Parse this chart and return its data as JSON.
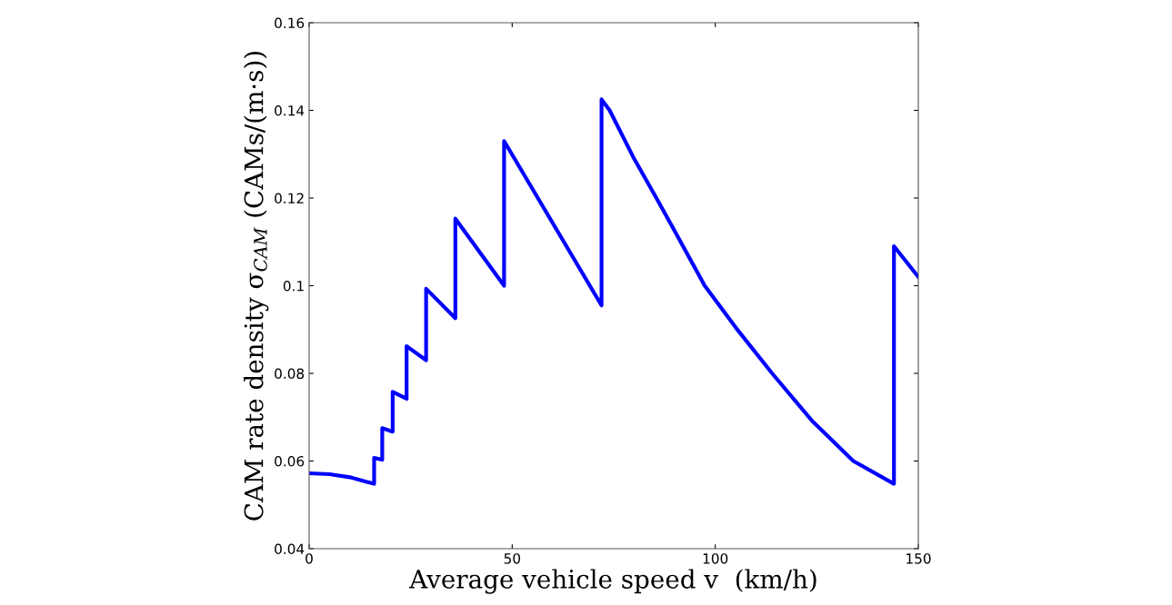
{
  "chart_data": {
    "type": "line",
    "xlabel": "Average vehicle speed v  (km/h)",
    "ylabel": "CAM rate density σ$_{CAM}$ (CAMs/(m·s))",
    "x": [
      0,
      5,
      10,
      14,
      16,
      16,
      18,
      18,
      20.57,
      20.57,
      24,
      24,
      28.8,
      28.8,
      36,
      36,
      48,
      48,
      72,
      72,
      74,
      80,
      85.5,
      90,
      97.4,
      105,
      114,
      124,
      134,
      144,
      144,
      150
    ],
    "series": [
      {
        "color": "#0000ff",
        "values": [
          0.0572,
          0.057,
          0.0563,
          0.0553,
          0.0548,
          0.0607,
          0.0603,
          0.0675,
          0.0667,
          0.0758,
          0.0742,
          0.0862,
          0.083,
          0.0993,
          0.0926,
          0.1153,
          0.1,
          0.133,
          0.0955,
          0.1425,
          0.14,
          0.129,
          0.12,
          0.1125,
          0.1,
          0.0905,
          0.08,
          0.069,
          0.06,
          0.0548,
          0.109,
          0.102
        ]
      }
    ],
    "xlim": [
      0,
      150
    ],
    "xticks": [
      0,
      50,
      100,
      150
    ],
    "ylim": [
      0.04,
      0.16
    ],
    "yticks": [
      0.04,
      0.06,
      0.08,
      0.1,
      0.12,
      0.14,
      0.16
    ],
    "grid": false,
    "legend": false,
    "marker": "none",
    "line_style": "solid"
  }
}
